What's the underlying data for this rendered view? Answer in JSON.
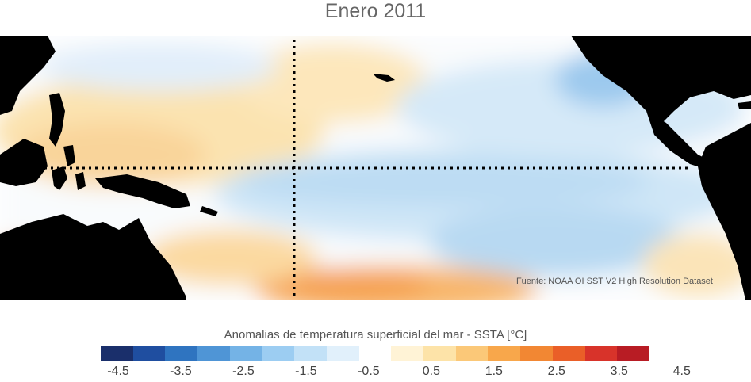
{
  "title": "Enero 2011",
  "source": "Fuente: NOAA OI SST V2 High Resolution Dataset",
  "colorbar": {
    "title": "Anomalias de temperatura superficial del mar - SSTA  [°C]",
    "colors": [
      "#1a2f6b",
      "#1f4ea0",
      "#2f74c0",
      "#4f95d6",
      "#74b3e6",
      "#9ccdf2",
      "#c2e1f7",
      "#e1f0fb",
      "#ffffff",
      "#fff3d6",
      "#fde3a8",
      "#fbc878",
      "#f8a74b",
      "#f28733",
      "#ea5f28",
      "#d8332a",
      "#b81c24"
    ],
    "tick_labels": [
      "-4.5",
      "-3.5",
      "-2.5",
      "-1.5",
      "-0.5",
      "0.5",
      "1.5",
      "2.5",
      "3.5",
      "4.5"
    ]
  }
}
